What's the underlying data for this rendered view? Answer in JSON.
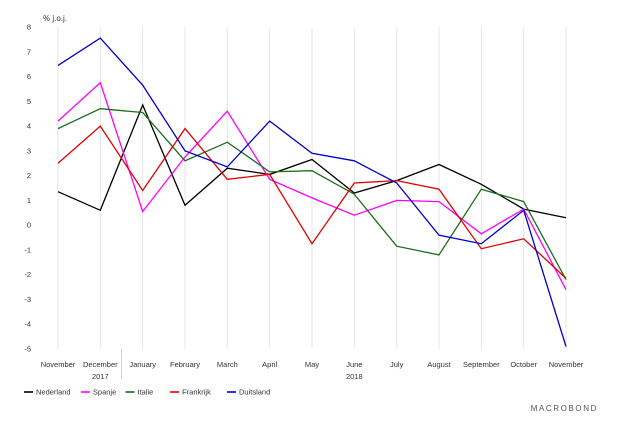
{
  "chart_data": {
    "type": "line",
    "title": "",
    "ylabel": "% j.o.j.",
    "ylim": [
      -5,
      8
    ],
    "yticks": [
      8,
      7,
      6,
      5,
      4,
      3,
      2,
      1,
      0,
      -1,
      -2,
      -3,
      -4,
      -5
    ],
    "categories": [
      "November",
      "December",
      "January",
      "February",
      "March",
      "April",
      "May",
      "June",
      "July",
      "August",
      "September",
      "October",
      "November"
    ],
    "year_labels": [
      {
        "text": "2017",
        "category_index": 1
      },
      {
        "text": "2018",
        "category_index": 7
      }
    ],
    "series": [
      {
        "name": "Nederland",
        "color": "#000000",
        "values": [
          1.35,
          0.6,
          4.85,
          0.8,
          2.3,
          2.05,
          2.65,
          1.3,
          1.8,
          2.45,
          1.65,
          0.65,
          0.3
        ]
      },
      {
        "name": "Spanje",
        "color": "#ff00ff",
        "values": [
          4.2,
          5.75,
          0.55,
          2.75,
          4.6,
          1.85,
          1.1,
          0.4,
          1.0,
          0.95,
          -0.35,
          0.65,
          -2.6
        ]
      },
      {
        "name": "Italie",
        "color": "#1a6e1a",
        "values": [
          3.9,
          4.7,
          4.55,
          2.6,
          3.35,
          2.15,
          2.2,
          1.25,
          -0.85,
          -1.2,
          1.45,
          0.95,
          -2.2
        ]
      },
      {
        "name": "Frankrijk",
        "color": "#e00000",
        "values": [
          2.5,
          4.0,
          1.4,
          3.9,
          1.85,
          2.05,
          -0.75,
          1.7,
          1.8,
          1.45,
          -0.95,
          -0.55,
          -2.15
        ]
      },
      {
        "name": "Duitsland",
        "color": "#0000cc",
        "values": [
          6.45,
          7.55,
          5.65,
          3.0,
          2.35,
          4.2,
          2.9,
          2.6,
          1.7,
          -0.4,
          -0.75,
          0.6,
          -4.9
        ]
      }
    ],
    "legend_position": "bottom-left",
    "grid": true
  },
  "branding": {
    "text": "MACROBOND"
  }
}
